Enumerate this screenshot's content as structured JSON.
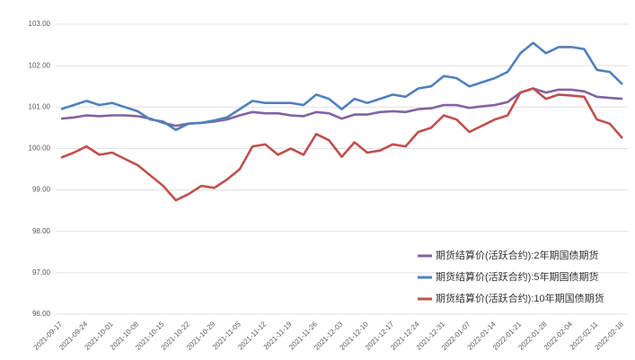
{
  "chart_data": {
    "type": "line",
    "categories": [
      "2021-09-17",
      null,
      "2021-09-24",
      null,
      "2021-10-01",
      null,
      "2021-10-08",
      null,
      "2021-10-15",
      null,
      "2021-10-22",
      null,
      "2021-10-29",
      null,
      "2021-11-05",
      null,
      "2021-11-12",
      null,
      "2021-11-19",
      null,
      "2021-11-26",
      null,
      "2021-12-03",
      null,
      "2021-12-10",
      null,
      "2021-12-17",
      null,
      "2021-12-24",
      null,
      "2021-12-31",
      null,
      "2022-01-07",
      null,
      "2022-01-14",
      null,
      "2022-01-21",
      null,
      "2022-01-28",
      null,
      "2022-02-04",
      null,
      "2022-02-11",
      null,
      "2022-02-18"
    ],
    "series": [
      {
        "name": "期货结算价(活跃合约):2年期国债期货",
        "color": "#8064a2",
        "values": [
          100.72,
          100.75,
          100.8,
          100.78,
          100.8,
          100.8,
          100.78,
          100.72,
          100.62,
          100.55,
          100.6,
          100.62,
          100.65,
          100.7,
          100.8,
          100.88,
          100.85,
          100.85,
          100.8,
          100.78,
          100.88,
          100.85,
          100.72,
          100.82,
          100.82,
          100.88,
          100.9,
          100.88,
          100.95,
          100.97,
          101.05,
          101.05,
          100.98,
          101.02,
          101.05,
          101.12,
          101.35,
          101.45,
          101.35,
          101.42,
          101.42,
          101.38,
          101.25,
          101.22,
          101.2
        ]
      },
      {
        "name": "期货结算价(活跃合约):5年期国债期货",
        "color": "#4f81bd",
        "values": [
          100.95,
          101.05,
          101.15,
          101.05,
          101.1,
          101.0,
          100.9,
          100.7,
          100.65,
          100.45,
          100.6,
          100.62,
          100.68,
          100.75,
          100.95,
          101.15,
          101.1,
          101.1,
          101.1,
          101.05,
          101.3,
          101.2,
          100.95,
          101.2,
          101.1,
          101.2,
          101.3,
          101.25,
          101.45,
          101.5,
          101.75,
          101.7,
          101.5,
          101.6,
          101.7,
          101.85,
          102.3,
          102.55,
          102.3,
          102.45,
          102.45,
          102.4,
          101.9,
          101.85,
          101.55
        ]
      },
      {
        "name": "期货结算价(活跃合约):10年期国债期货",
        "color": "#c0504d",
        "values": [
          99.78,
          99.9,
          100.05,
          99.85,
          99.9,
          99.75,
          99.6,
          99.35,
          99.1,
          98.75,
          98.9,
          99.1,
          99.05,
          99.25,
          99.5,
          100.05,
          100.1,
          99.85,
          100.0,
          99.85,
          100.35,
          100.2,
          99.8,
          100.15,
          99.9,
          99.95,
          100.1,
          100.05,
          100.4,
          100.5,
          100.8,
          100.7,
          100.4,
          100.55,
          100.7,
          100.8,
          101.35,
          101.45,
          101.2,
          101.3,
          101.28,
          101.25,
          100.7,
          100.6,
          100.25
        ]
      }
    ],
    "ylim": [
      96,
      103
    ],
    "yticks": [
      {
        "value": 96,
        "label": "96.00"
      },
      {
        "value": 97,
        "label": "97.00"
      },
      {
        "value": 98,
        "label": "98.00"
      },
      {
        "value": 99,
        "label": "99.00"
      },
      {
        "value": 100,
        "label": "100.00"
      },
      {
        "value": 101,
        "label": "101.00"
      },
      {
        "value": 102,
        "label": "102.00"
      },
      {
        "value": 103,
        "label": "103.00"
      }
    ],
    "grid": true,
    "legend": "lower right"
  }
}
